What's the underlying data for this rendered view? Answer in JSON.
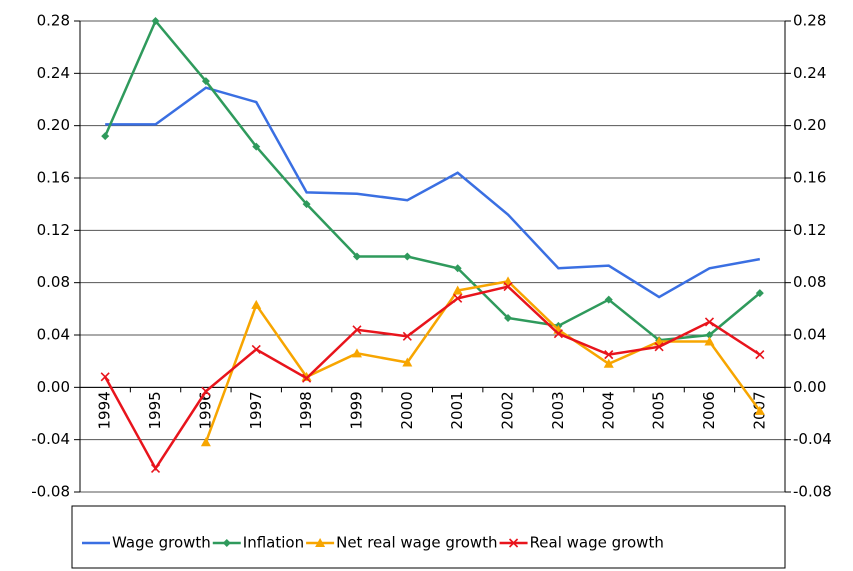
{
  "chart_data": {
    "type": "line",
    "categories": [
      "1994",
      "1995",
      "1996",
      "1997",
      "1998",
      "1999",
      "2000",
      "2001",
      "2002",
      "2003",
      "2004",
      "2005",
      "2006",
      "2007"
    ],
    "series": [
      {
        "name": "Wage growth",
        "color": "#3a6fe2",
        "marker": "none",
        "values": [
          0.201,
          0.201,
          0.229,
          0.218,
          0.149,
          0.148,
          0.143,
          0.164,
          0.132,
          0.091,
          0.093,
          0.069,
          0.091,
          0.098
        ]
      },
      {
        "name": "Inflation",
        "color": "#2f9a5c",
        "marker": "diamond",
        "values": [
          0.192,
          0.28,
          0.234,
          0.184,
          0.14,
          0.1,
          0.1,
          0.091,
          0.053,
          0.047,
          0.067,
          0.036,
          0.04,
          0.072
        ]
      },
      {
        "name": "Net real wage growth",
        "color": "#f7a500",
        "marker": "triangle",
        "values": [
          null,
          null,
          -0.042,
          0.063,
          0.008,
          0.026,
          0.019,
          0.074,
          0.081,
          0.044,
          0.018,
          0.035,
          0.035,
          -0.018
        ]
      },
      {
        "name": "Real wage growth",
        "color": "#e8141c",
        "marker": "x",
        "values": [
          0.008,
          -0.062,
          -0.003,
          0.029,
          0.007,
          0.044,
          0.039,
          0.068,
          0.077,
          0.041,
          0.025,
          0.031,
          0.05,
          0.025
        ]
      }
    ],
    "ylim": [
      -0.08,
      0.28
    ],
    "yticks": [
      -0.08,
      -0.04,
      {
        "value": 0,
        "label": "0.00"
      },
      0.04,
      0.08,
      0.12,
      0.16,
      {
        "value": 0.2,
        "label": "0.20"
      },
      0.24,
      0.28
    ],
    "y2lim": [
      -0.08,
      0.28
    ],
    "y2ticks": [
      -0.08,
      -0.04,
      {
        "value": 0,
        "label": "0.00"
      },
      0.04,
      0.08,
      0.12,
      0.16,
      {
        "value": 0.2,
        "label": "0.20"
      },
      0.24,
      0.28
    ],
    "grid": true,
    "legend": "bottom"
  }
}
